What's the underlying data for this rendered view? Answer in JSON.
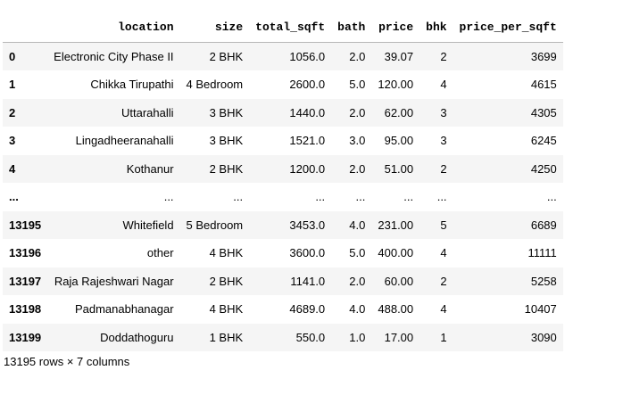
{
  "table": {
    "columns": [
      "",
      "location",
      "size",
      "total_sqft",
      "bath",
      "price",
      "bhk",
      "price_per_sqft"
    ],
    "rows": [
      [
        "0",
        "Electronic City Phase II",
        "2 BHK",
        "1056.0",
        "2.0",
        "39.07",
        "2",
        "3699"
      ],
      [
        "1",
        "Chikka Tirupathi",
        "4 Bedroom",
        "2600.0",
        "5.0",
        "120.00",
        "4",
        "4615"
      ],
      [
        "2",
        "Uttarahalli",
        "3 BHK",
        "1440.0",
        "2.0",
        "62.00",
        "3",
        "4305"
      ],
      [
        "3",
        "Lingadheeranahalli",
        "3 BHK",
        "1521.0",
        "3.0",
        "95.00",
        "3",
        "6245"
      ],
      [
        "4",
        "Kothanur",
        "2 BHK",
        "1200.0",
        "2.0",
        "51.00",
        "2",
        "4250"
      ],
      [
        "...",
        "...",
        "...",
        "...",
        "...",
        "...",
        "...",
        "..."
      ],
      [
        "13195",
        "Whitefield",
        "5 Bedroom",
        "3453.0",
        "4.0",
        "231.00",
        "5",
        "6689"
      ],
      [
        "13196",
        "other",
        "4 BHK",
        "3600.0",
        "5.0",
        "400.00",
        "4",
        "11111"
      ],
      [
        "13197",
        "Raja Rajeshwari Nagar",
        "2 BHK",
        "1141.0",
        "2.0",
        "60.00",
        "2",
        "5258"
      ],
      [
        "13198",
        "Padmanabhanagar",
        "4 BHK",
        "4689.0",
        "4.0",
        "488.00",
        "4",
        "10407"
      ],
      [
        "13199",
        "Doddathoguru",
        "1 BHK",
        "550.0",
        "1.0",
        "17.00",
        "1",
        "3090"
      ]
    ]
  },
  "footer": "13195 rows × 7 columns",
  "colors": {
    "stripe": "#f5f5f5",
    "header_border": "#b7b7b7"
  }
}
